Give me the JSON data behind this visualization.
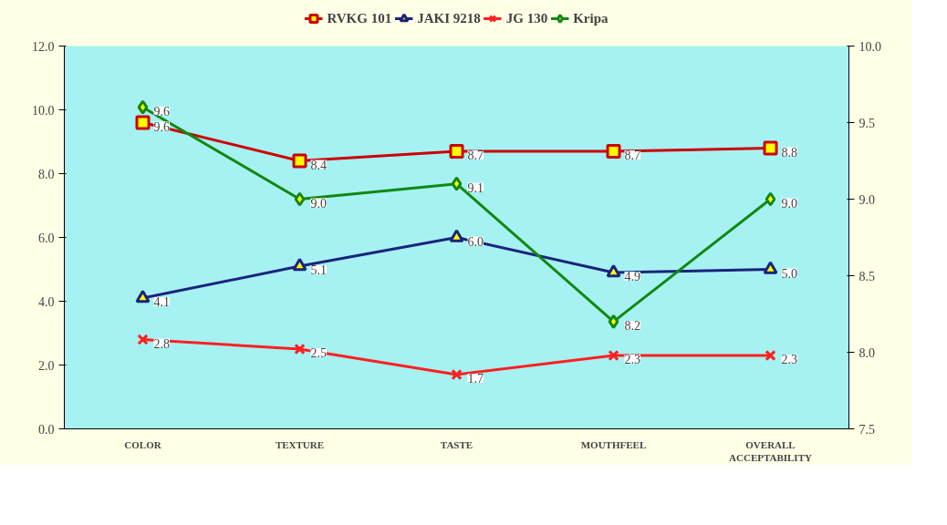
{
  "chart_data": {
    "type": "line",
    "categories": [
      "COLOR",
      "TEXTURE",
      "TASTE",
      "MOUTHFEEL",
      "OVERALL\nACCEPTABILITY"
    ],
    "series": [
      {
        "name": "RVKG 101",
        "color": "#cc0000",
        "marker": "square",
        "values": [
          9.6,
          8.4,
          8.7,
          8.7,
          8.8
        ]
      },
      {
        "name": "JAKI 9218",
        "color": "#1a237e",
        "marker": "triangle",
        "values": [
          4.1,
          5.1,
          6.0,
          4.9,
          5.0
        ],
        "value_labels": [
          "4.1",
          "5.1",
          "6.0",
          "4.9",
          "5.0"
        ]
      },
      {
        "name": "JG 130",
        "color": "#ff2020",
        "marker": "cross",
        "values": [
          2.8,
          2.5,
          1.7,
          2.3,
          2.3
        ]
      },
      {
        "name": "Kripa",
        "color": "#118811",
        "marker": "diamond",
        "axis": "y2",
        "values": [
          9.6,
          9.0,
          9.1,
          8.2,
          9.0
        ],
        "value_labels": [
          "9.6",
          "9.0",
          "9.1",
          "8.2",
          "9.0"
        ]
      }
    ],
    "ylim": [
      0,
      12
    ],
    "yticks": [
      {
        "value": 0,
        "label": "0.0"
      },
      {
        "value": 2,
        "label": "2.0"
      },
      {
        "value": 4,
        "label": "4.0"
      },
      {
        "value": 6,
        "label": "6.0"
      },
      {
        "value": 8,
        "label": "8.0"
      },
      {
        "value": 10,
        "label": "10.0"
      },
      {
        "value": 12,
        "label": "12.0"
      }
    ],
    "y2lim": [
      7.5,
      10
    ],
    "y2ticks": [
      7.5,
      {
        "value": 8,
        "label": "8.0"
      },
      8.5,
      {
        "value": 9,
        "label": "9.0"
      },
      9.5,
      {
        "value": 10,
        "label": "10.0"
      }
    ],
    "data_labels": true,
    "legend": "top",
    "grid": false
  }
}
